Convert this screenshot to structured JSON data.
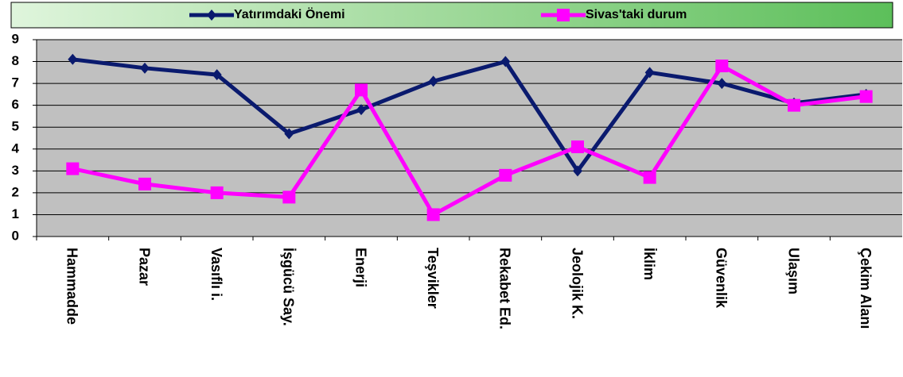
{
  "chart_data": {
    "type": "line",
    "categories": [
      "Hammadde",
      "Pazar",
      "Vasıflı i.",
      "İşgücü Say.",
      "Enerji",
      "Teşvikler",
      "Rekabet Ed.",
      "Jeolojik K.",
      "İklim",
      "Güvenlik",
      "Ulaşım",
      "Çekim Alanı"
    ],
    "series": [
      {
        "name": "Yatırımdaki Önemi",
        "color": "#0a1a6e",
        "marker": "diamond",
        "values": [
          8.1,
          7.7,
          7.4,
          4.7,
          5.8,
          7.1,
          8.0,
          3.0,
          7.5,
          7.0,
          6.1,
          6.5
        ]
      },
      {
        "name": "Sivas'taki durum",
        "color": "#ff00ff",
        "marker": "square",
        "values": [
          3.1,
          2.4,
          2.0,
          1.8,
          6.7,
          1.0,
          2.8,
          4.1,
          2.7,
          7.8,
          6.0,
          6.4
        ]
      }
    ],
    "ylim": [
      0,
      9
    ],
    "yticks": [
      0,
      1,
      2,
      3,
      4,
      5,
      6,
      7,
      8,
      9
    ],
    "grid": true,
    "legend": "top"
  }
}
